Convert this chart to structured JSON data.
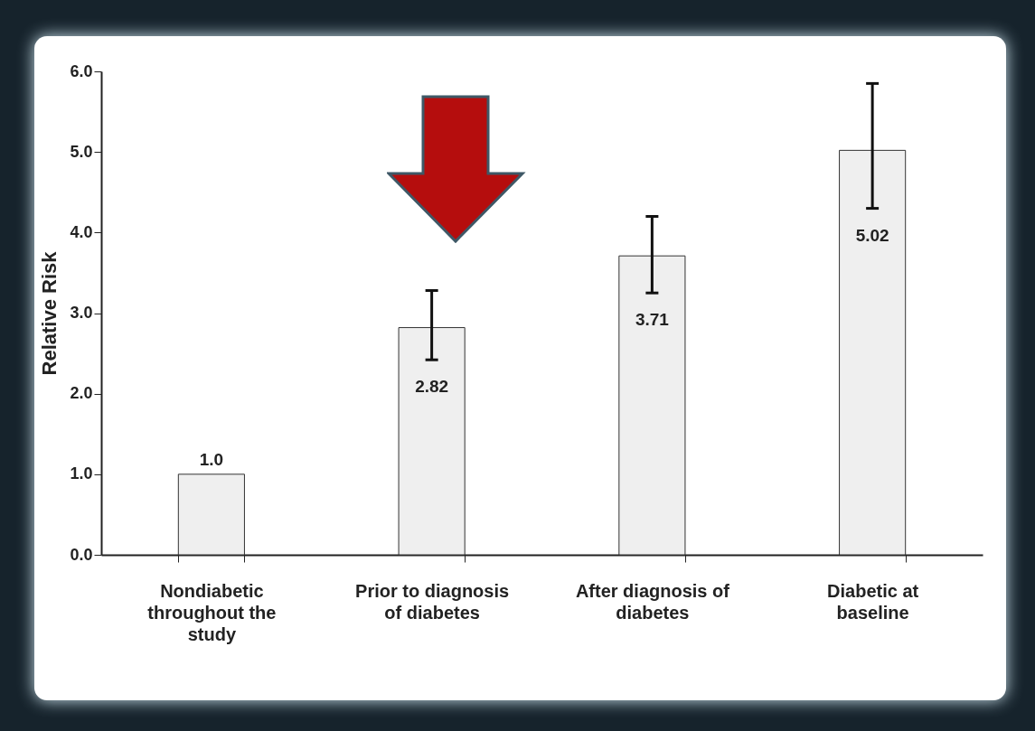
{
  "chart_data": {
    "type": "bar",
    "ylabel": "Relative Risk",
    "categories": [
      "Nondiabetic throughout the study",
      "Prior to diagnosis of diabetes",
      "After diagnosis of diabetes",
      "Diabetic at baseline"
    ],
    "values": [
      1.0,
      2.82,
      3.71,
      5.02
    ],
    "errors": [
      null,
      [
        2.42,
        3.28
      ],
      [
        3.25,
        4.2
      ],
      [
        4.3,
        5.85
      ]
    ],
    "value_labels": [
      "1.0",
      "2.82",
      "3.71",
      "5.02"
    ],
    "color": "#efefef",
    "ylim": [
      0,
      6
    ],
    "yticks": [
      {
        "value": 0,
        "label": "0.0"
      },
      {
        "value": 1,
        "label": "1.0"
      },
      {
        "value": 2,
        "label": "2.0"
      },
      {
        "value": 3,
        "label": "3.0"
      },
      {
        "value": 4,
        "label": "4.0"
      },
      {
        "value": 5,
        "label": "5.0"
      },
      {
        "value": 6,
        "label": "6.0"
      }
    ],
    "grid": false
  }
}
